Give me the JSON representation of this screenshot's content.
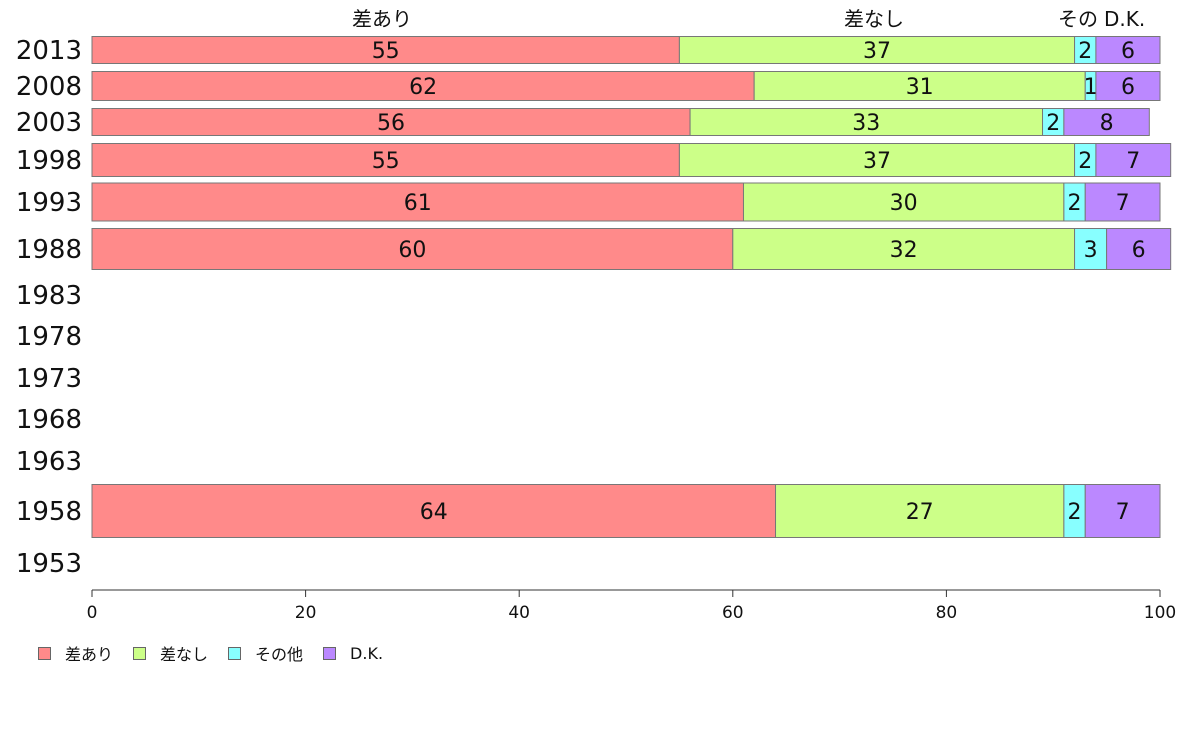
{
  "chart_data": {
    "type": "bar",
    "orientation": "horizontal",
    "stacked": true,
    "categories": [
      "2013",
      "2008",
      "2003",
      "1998",
      "1993",
      "1988",
      "1983",
      "1978",
      "1973",
      "1968",
      "1963",
      "1958",
      "1953"
    ],
    "series": [
      {
        "name": "差あり",
        "color": "#ff8a8a",
        "values": [
          55,
          62,
          56,
          55,
          61,
          60,
          null,
          null,
          null,
          null,
          null,
          64,
          null
        ]
      },
      {
        "name": "差なし",
        "color": "#ccff88",
        "values": [
          37,
          31,
          33,
          37,
          30,
          32,
          null,
          null,
          null,
          null,
          null,
          27,
          null
        ]
      },
      {
        "name": "その他",
        "color": "#88ffff",
        "values": [
          2,
          1,
          2,
          2,
          2,
          3,
          null,
          null,
          null,
          null,
          null,
          2,
          null
        ]
      },
      {
        "name": "D.K.",
        "color": "#bb88ff",
        "values": [
          6,
          6,
          8,
          7,
          7,
          6,
          null,
          null,
          null,
          null,
          null,
          7,
          null
        ]
      }
    ],
    "top_labels": [
      "差あり",
      "差なし",
      "その",
      "D.K."
    ],
    "xlim": [
      0,
      100
    ],
    "x_ticks": [
      0,
      20,
      40,
      60,
      80,
      100
    ],
    "grid": false,
    "legend_position": "bottom-left",
    "title": "",
    "xlabel": "",
    "ylabel": ""
  }
}
